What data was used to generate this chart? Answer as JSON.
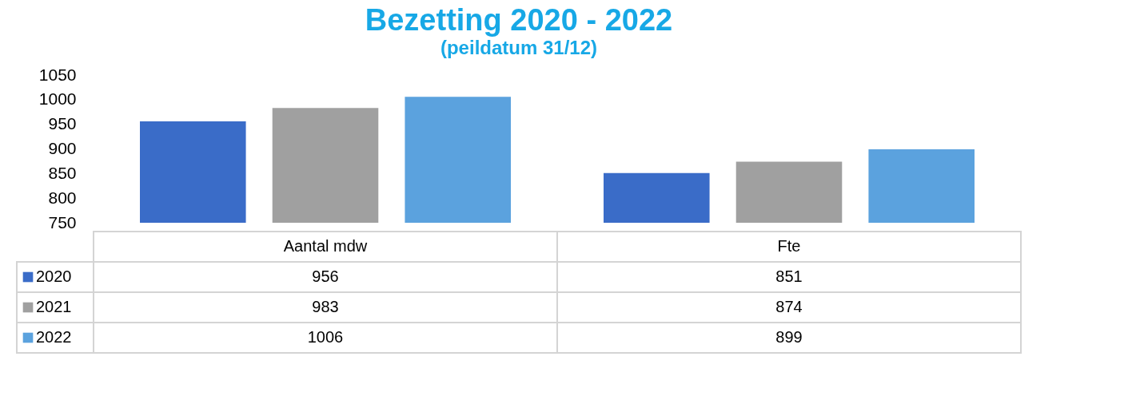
{
  "chart_data": {
    "type": "bar",
    "title": "Bezetting 2020 - 2022",
    "subtitle": "(peildatum 31/12)",
    "categories": [
      "Aantal mdw",
      "Fte"
    ],
    "series": [
      {
        "name": "2020",
        "color": "#3a6cc8",
        "values": [
          956,
          851
        ]
      },
      {
        "name": "2021",
        "color": "#a0a0a0",
        "values": [
          983,
          874
        ]
      },
      {
        "name": "2022",
        "color": "#5ba2de",
        "values": [
          1006,
          899
        ]
      }
    ],
    "ylim": [
      750,
      1050
    ],
    "yticks": [
      750,
      800,
      850,
      900,
      950,
      1000,
      1050
    ],
    "data_labels": true,
    "legend": "bottom"
  }
}
